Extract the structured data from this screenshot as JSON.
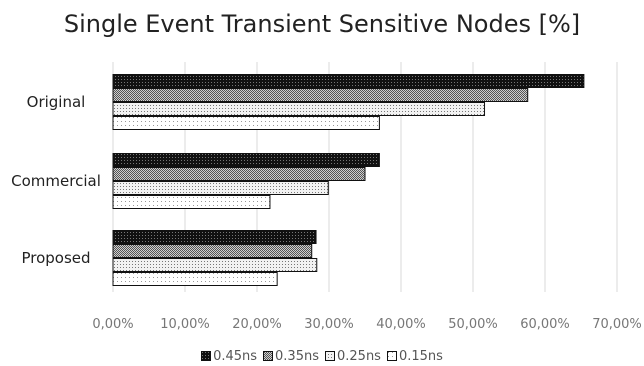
{
  "chart_data": {
    "type": "bar",
    "orientation": "horizontal",
    "title": "Single Event Transient Sensitive Nodes [%]",
    "categories": [
      "Original",
      "Commercial",
      "Proposed"
    ],
    "series": [
      {
        "name": "0.45ns",
        "values": [
          65.4,
          37.0,
          28.2
        ],
        "fill": "#111111",
        "pattern": "dots-dark"
      },
      {
        "name": "0.35ns",
        "values": [
          57.6,
          35.0,
          27.6
        ],
        "fill": "#9a9a9a",
        "pattern": "checker"
      },
      {
        "name": "0.25ns",
        "values": [
          51.6,
          29.9,
          28.3
        ],
        "fill": "#dcdcdc",
        "pattern": "dots-medium"
      },
      {
        "name": "0.15ns",
        "values": [
          37.0,
          21.8,
          22.8
        ],
        "fill": "#f4f4f4",
        "pattern": "dots-light"
      }
    ],
    "x_ticks": [
      "0,00%",
      "10,00%",
      "20,00%",
      "30,00%",
      "40,00%",
      "50,00%",
      "60,00%",
      "70,00%"
    ],
    "xlim": [
      0,
      70
    ],
    "grid": "vertical",
    "legend": "bottom"
  }
}
